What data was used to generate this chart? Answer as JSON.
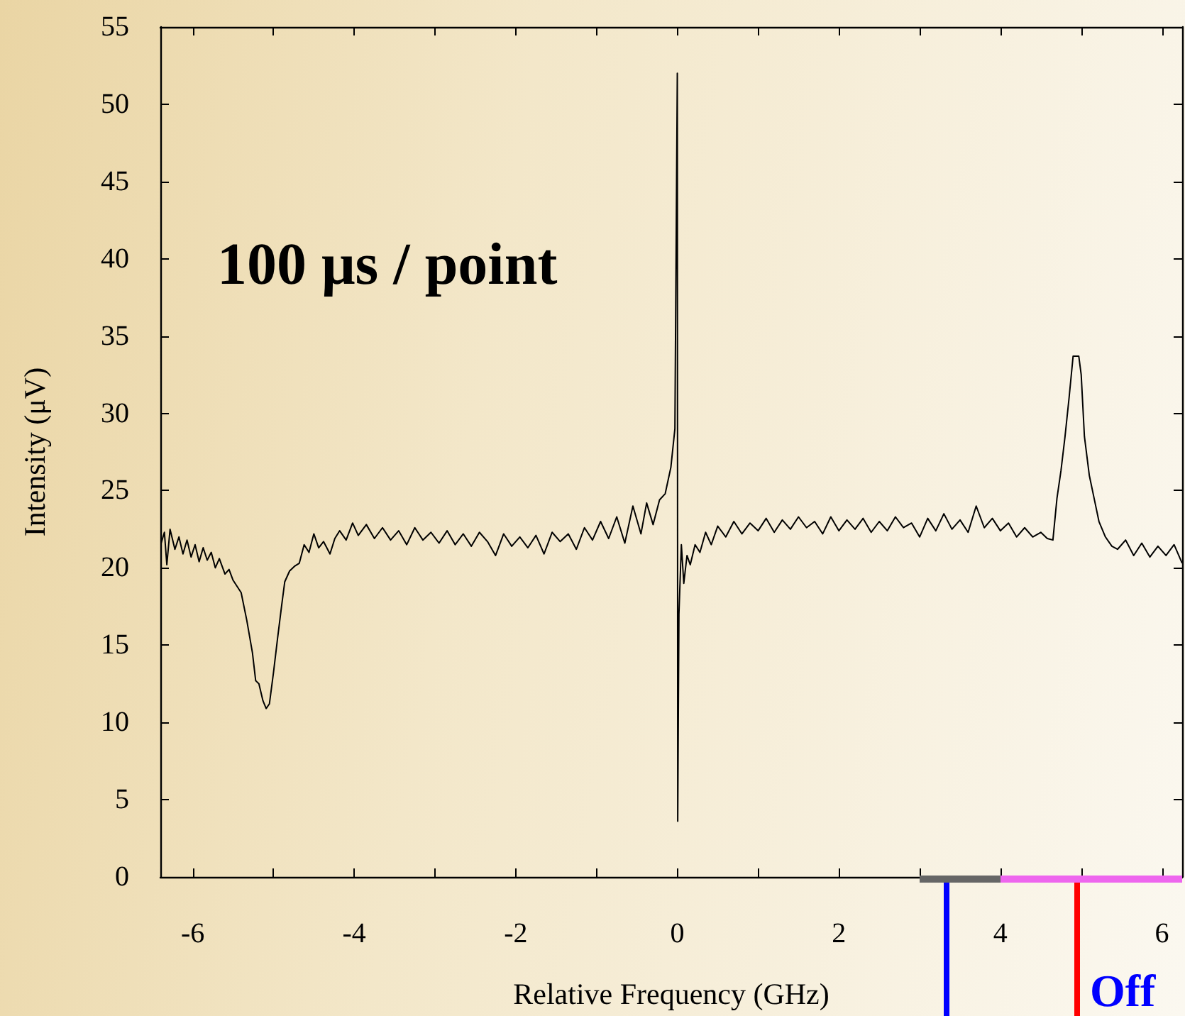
{
  "chart_data": {
    "type": "line",
    "xlabel": "Relative Frequency (GHz)",
    "ylabel": "Intensity (μV)",
    "annotations": [
      "100 μs / point",
      "Off"
    ],
    "x": [
      -6.39,
      -6.35,
      -6.32,
      -6.28,
      -6.22,
      -6.17,
      -6.12,
      -6.07,
      -6.02,
      -5.97,
      -5.92,
      -5.87,
      -5.82,
      -5.77,
      -5.72,
      -5.67,
      -5.6,
      -5.55,
      -5.5,
      -5.45,
      -5.4,
      -5.33,
      -5.26,
      -5.22,
      -5.18,
      -5.13,
      -5.09,
      -5.05,
      -5.0,
      -4.95,
      -4.9,
      -4.86,
      -4.8,
      -4.74,
      -4.68,
      -4.62,
      -4.56,
      -4.5,
      -4.44,
      -4.38,
      -4.3,
      -4.24,
      -4.18,
      -4.1,
      -4.02,
      -3.95,
      -3.85,
      -3.75,
      -3.65,
      -3.55,
      -3.45,
      -3.35,
      -3.25,
      -3.15,
      -3.05,
      -2.95,
      -2.85,
      -2.75,
      -2.65,
      -2.55,
      -2.45,
      -2.35,
      -2.25,
      -2.15,
      -2.05,
      -1.95,
      -1.85,
      -1.75,
      -1.65,
      -1.55,
      -1.45,
      -1.35,
      -1.25,
      -1.15,
      -1.05,
      -0.95,
      -0.85,
      -0.75,
      -0.65,
      -0.55,
      -0.45,
      -0.38,
      -0.3,
      -0.22,
      -0.15,
      -0.08,
      -0.03,
      0,
      0.005,
      0.02,
      0.05,
      0.08,
      0.12,
      0.16,
      0.22,
      0.28,
      0.35,
      0.42,
      0.5,
      0.6,
      0.7,
      0.8,
      0.9,
      1.0,
      1.1,
      1.2,
      1.3,
      1.4,
      1.5,
      1.6,
      1.7,
      1.8,
      1.9,
      2.0,
      2.1,
      2.2,
      2.3,
      2.4,
      2.5,
      2.6,
      2.7,
      2.8,
      2.9,
      3.0,
      3.1,
      3.2,
      3.3,
      3.4,
      3.5,
      3.6,
      3.7,
      3.8,
      3.9,
      4.0,
      4.1,
      4.2,
      4.3,
      4.4,
      4.5,
      4.58,
      4.65,
      4.7,
      4.75,
      4.8,
      4.85,
      4.9,
      4.97,
      5.0,
      5.04,
      5.1,
      5.16,
      5.22,
      5.3,
      5.38,
      5.45,
      5.55,
      5.65,
      5.75,
      5.85,
      5.95,
      6.05,
      6.15,
      6.25
    ],
    "series": [
      {
        "color": "#000000",
        "values": [
          21.6,
          22.3,
          20.2,
          22.5,
          21.2,
          22.0,
          20.9,
          21.8,
          20.7,
          21.5,
          20.4,
          21.3,
          20.5,
          21.0,
          20.0,
          20.6,
          19.6,
          19.9,
          19.2,
          18.8,
          18.4,
          16.6,
          14.5,
          12.7,
          12.5,
          11.4,
          10.9,
          11.2,
          13.2,
          15.4,
          17.5,
          19.1,
          19.8,
          20.1,
          20.3,
          21.5,
          21.0,
          22.2,
          21.3,
          21.7,
          20.9,
          21.9,
          22.4,
          21.8,
          22.9,
          22.1,
          22.8,
          21.9,
          22.6,
          21.8,
          22.4,
          21.5,
          22.6,
          21.8,
          22.3,
          21.6,
          22.4,
          21.5,
          22.2,
          21.4,
          22.3,
          21.7,
          20.8,
          22.2,
          21.4,
          22.0,
          21.3,
          22.1,
          20.9,
          22.3,
          21.7,
          22.2,
          21.2,
          22.6,
          21.8,
          23.0,
          21.9,
          23.3,
          21.6,
          24.0,
          22.2,
          24.2,
          22.8,
          24.4,
          24.8,
          26.5,
          29.0,
          52,
          3.6,
          17.0,
          21.5,
          19.0,
          20.8,
          20.2,
          21.5,
          21.0,
          22.3,
          21.5,
          22.7,
          22.0,
          23.0,
          22.2,
          22.9,
          22.4,
          23.2,
          22.3,
          23.1,
          22.5,
          23.3,
          22.6,
          23.0,
          22.2,
          23.3,
          22.4,
          23.1,
          22.5,
          23.2,
          22.3,
          23.0,
          22.4,
          23.3,
          22.6,
          22.9,
          22.0,
          23.2,
          22.4,
          23.5,
          22.5,
          23.1,
          22.3,
          24.0,
          22.6,
          23.2,
          22.4,
          22.9,
          22.0,
          22.6,
          22.0,
          22.3,
          21.9,
          21.8,
          24.5,
          26.3,
          28.5,
          31.0,
          33.7,
          33.7,
          32.5,
          28.5,
          26.0,
          24.5,
          23.0,
          22.0,
          21.4,
          21.2,
          21.8,
          20.8,
          21.6,
          20.7,
          21.4,
          20.8,
          21.5,
          20.3
        ]
      }
    ],
    "xlim": [
      -6.4,
      6.25
    ],
    "xticks": [
      -6,
      {
        "value": -5,
        "label": null
      },
      -4,
      {
        "value": -3,
        "label": null
      },
      -2,
      {
        "value": -1,
        "label": null
      },
      0,
      {
        "value": 1,
        "label": null
      },
      2,
      {
        "value": 3,
        "label": null
      },
      4,
      {
        "value": 5,
        "label": null
      },
      6
    ],
    "ylim": [
      0,
      55
    ],
    "yticks": [
      0,
      5,
      10,
      15,
      20,
      25,
      30,
      35,
      40,
      45,
      50,
      55
    ],
    "marker": "none",
    "line_style": "solid"
  }
}
